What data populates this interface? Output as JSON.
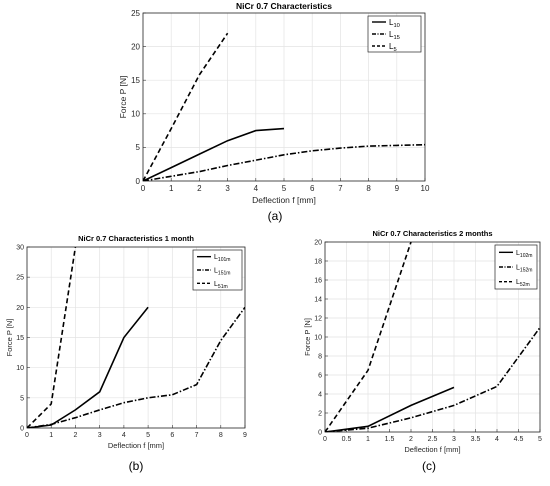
{
  "panels": [
    {
      "caption": "(a)",
      "chart_data": {
        "type": "line",
        "title": "NiCr 0.7 Characteristics",
        "xlabel": "Deflection f [mm]",
        "ylabel": "Force P [N]",
        "xlim": [
          0,
          10
        ],
        "ylim": [
          0,
          25
        ],
        "xticks": [
          "0",
          "1",
          "2",
          "3",
          "4",
          "5",
          "6",
          "7",
          "8",
          "9",
          "10"
        ],
        "yticks": [
          "0",
          "5",
          "10",
          "15",
          "20",
          "25"
        ],
        "grid": true,
        "legend": "top-right",
        "series": [
          {
            "name": "L",
            "sub": "10",
            "style": "solid",
            "x": [
              0,
              1,
              2,
              3,
              4,
              5
            ],
            "y": [
              0,
              2,
              4,
              6,
              7.5,
              7.8
            ]
          },
          {
            "name": "L",
            "sub": "15",
            "style": "dashdot",
            "x": [
              0,
              1,
              2,
              3,
              4,
              5,
              6,
              7,
              8,
              9,
              10
            ],
            "y": [
              0,
              0.7,
              1.4,
              2.3,
              3.1,
              3.9,
              4.5,
              4.9,
              5.2,
              5.3,
              5.4
            ]
          },
          {
            "name": "L",
            "sub": "5",
            "style": "dashed",
            "x": [
              0,
              1,
              2,
              3
            ],
            "y": [
              0,
              7.8,
              15.8,
              22
            ]
          }
        ]
      }
    },
    {
      "caption": "(b)",
      "chart_data": {
        "type": "line",
        "title": "NiCr 0.7 Characteristics 1 month",
        "xlabel": "Deflection f [mm]",
        "ylabel": "Force P [N]",
        "xlim": [
          0,
          9
        ],
        "ylim": [
          0,
          30
        ],
        "xticks": [
          "0",
          "1",
          "2",
          "3",
          "4",
          "5",
          "6",
          "7",
          "8",
          "9"
        ],
        "yticks": [
          "0",
          "5",
          "10",
          "15",
          "20",
          "25",
          "30"
        ],
        "grid": true,
        "legend": "top-right",
        "series": [
          {
            "name": "L",
            "sub": "101m",
            "style": "solid",
            "x": [
              0,
              1,
              2,
              3,
              4,
              5
            ],
            "y": [
              0,
              0.5,
              3,
              6,
              15,
              20
            ]
          },
          {
            "name": "L",
            "sub": "151m",
            "style": "dashdot",
            "x": [
              0,
              1,
              2,
              3,
              4,
              5,
              6,
              7,
              8,
              9
            ],
            "y": [
              0,
              0.6,
              1.7,
              3,
              4.2,
              5,
              5.5,
              7.2,
              14.5,
              20
            ]
          },
          {
            "name": "L",
            "sub": "51m",
            "style": "dashed",
            "x": [
              0,
              1,
              2
            ],
            "y": [
              0,
              4,
              30
            ]
          }
        ]
      }
    },
    {
      "caption": "(c)",
      "chart_data": {
        "type": "line",
        "title": "NiCr 0.7 Characteristics 2 months",
        "xlabel": "Deflection f [mm]",
        "ylabel": "Force P [N]",
        "xlim": [
          0,
          5
        ],
        "ylim": [
          0,
          20
        ],
        "xticks": [
          "0",
          "0.5",
          "1",
          "1.5",
          "2",
          "2.5",
          "3",
          "3.5",
          "4",
          "4.5",
          "5"
        ],
        "yticks": [
          "0",
          "2",
          "4",
          "6",
          "8",
          "10",
          "12",
          "14",
          "16",
          "18",
          "20"
        ],
        "grid": true,
        "legend": "top-right",
        "series": [
          {
            "name": "L",
            "sub": "102m",
            "style": "solid",
            "x": [
              0,
              1,
              2,
              3
            ],
            "y": [
              0,
              0.6,
              2.8,
              4.7
            ]
          },
          {
            "name": "L",
            "sub": "152m",
            "style": "dashdot",
            "x": [
              0,
              1,
              2,
              3,
              4,
              5
            ],
            "y": [
              0,
              0.4,
              1.5,
              2.8,
              4.8,
              11
            ]
          },
          {
            "name": "L",
            "sub": "52m",
            "style": "dashed",
            "x": [
              0,
              1,
              2
            ],
            "y": [
              0,
              6.5,
              20
            ]
          }
        ]
      }
    }
  ]
}
